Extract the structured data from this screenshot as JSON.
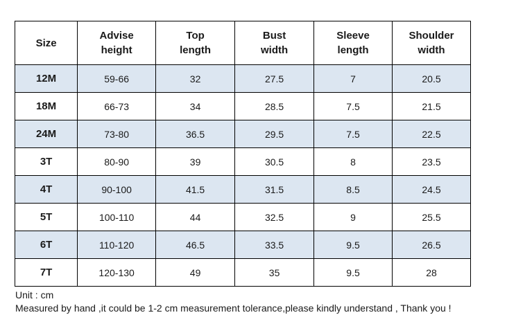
{
  "table": {
    "headers": [
      [
        "Size",
        ""
      ],
      [
        "Advise",
        "height"
      ],
      [
        "Top",
        "length"
      ],
      [
        "Bust",
        "width"
      ],
      [
        "Sleeve",
        "length"
      ],
      [
        "Shoulder",
        "width"
      ]
    ],
    "rows": [
      [
        "12M",
        "59-66",
        "32",
        "27.5",
        "7",
        "20.5"
      ],
      [
        "18M",
        "66-73",
        "34",
        "28.5",
        "7.5",
        "21.5"
      ],
      [
        "24M",
        "73-80",
        "36.5",
        "29.5",
        "7.5",
        "22.5"
      ],
      [
        "3T",
        "80-90",
        "39",
        "30.5",
        "8",
        "23.5"
      ],
      [
        "4T",
        "90-100",
        "41.5",
        "31.5",
        "8.5",
        "24.5"
      ],
      [
        "5T",
        "100-110",
        "44",
        "32.5",
        "9",
        "25.5"
      ],
      [
        "6T",
        "110-120",
        "46.5",
        "33.5",
        "9.5",
        "26.5"
      ],
      [
        "7T",
        "120-130",
        "49",
        "35",
        "9.5",
        "28"
      ]
    ],
    "shaded_row_color": "#dce6f1",
    "border_color": "#000000"
  },
  "notes": {
    "unit": "Unit : cm",
    "tolerance": "Measured by hand ,it could be 1-2 cm measurement tolerance,please kindly understand , Thank you !"
  }
}
